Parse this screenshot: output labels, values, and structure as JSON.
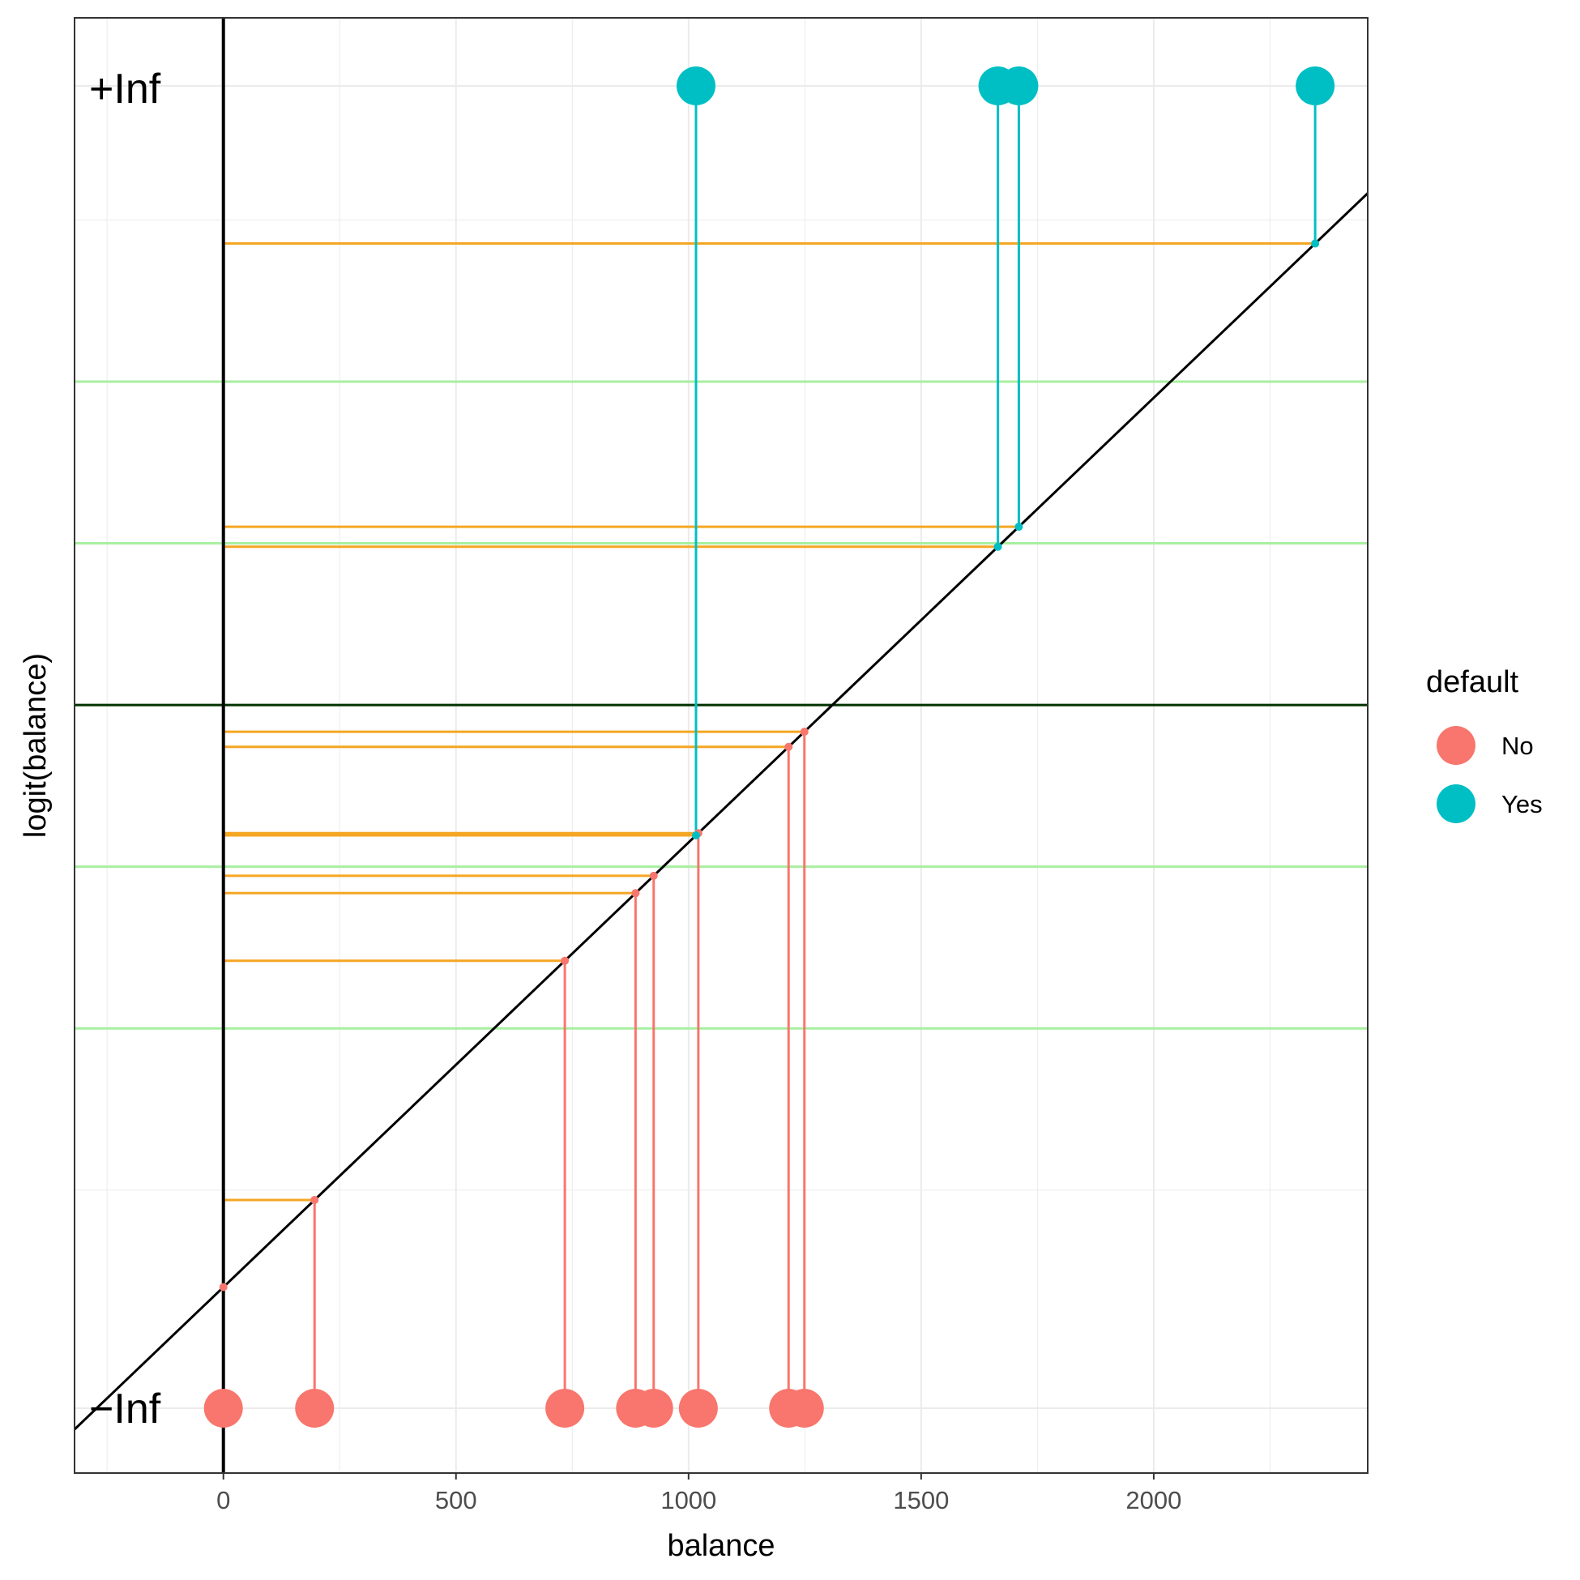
{
  "chart_data": {
    "type": "scatter",
    "xlabel": "balance",
    "ylabel": "logit(balance)",
    "x_ticks": [
      0,
      500,
      1000,
      1500,
      2000
    ],
    "x_tick_labels": [
      "0",
      "500",
      "1000",
      "1500",
      "2000"
    ],
    "xlim": [
      -320,
      2460
    ],
    "ylim": [
      -9.5,
      8.5
    ],
    "line": {
      "intercept": -7.2,
      "slope": 0.0055
    },
    "horizontal_ref": {
      "y": 0
    },
    "green_guides": [
      4,
      2,
      -2,
      -4
    ],
    "inf_labels": {
      "top": "+Inf",
      "bottom": "−Inf"
    },
    "legend": {
      "title": "default",
      "placement": "right",
      "entries": [
        {
          "label": "No",
          "color": "#F8766D"
        },
        {
          "label": "Yes",
          "color": "#00BFC4"
        }
      ]
    },
    "series": [
      {
        "name": "No",
        "color": "#F8766D",
        "x": [
          0,
          196,
          734,
          886,
          925,
          1021,
          1215,
          1249
        ]
      },
      {
        "name": "Yes",
        "color": "#00BFC4",
        "x": [
          1016,
          1665,
          1710,
          2347
        ]
      }
    ],
    "colors": {
      "projection": "#F5A623",
      "fit_line": "#000000",
      "ref_line": "#003300",
      "guide": "#A8EFA0",
      "grid": "#EBEBEB"
    }
  }
}
